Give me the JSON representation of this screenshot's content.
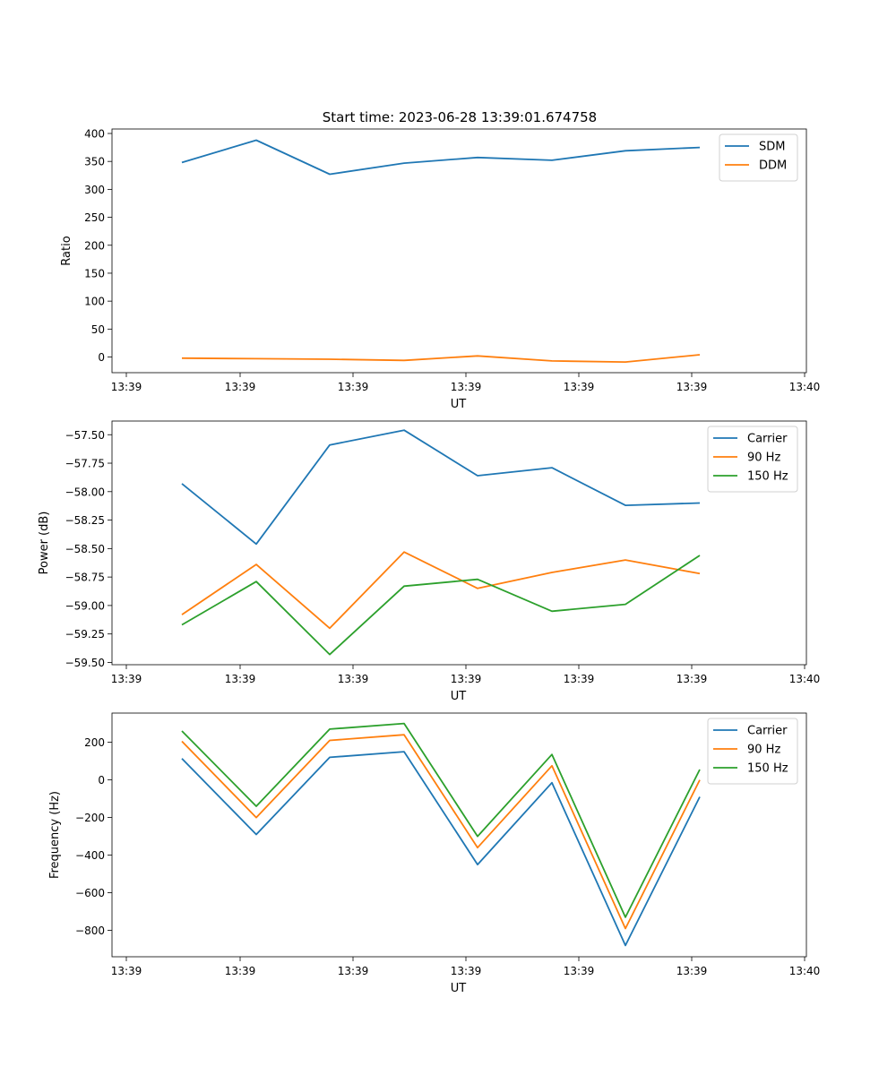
{
  "figure_title": "Start time: 2023-06-28 13:39:01.674758",
  "colors": {
    "blue": "#1f77b4",
    "orange": "#ff7f0e",
    "green": "#2ca02c"
  },
  "chart_data": [
    {
      "type": "line",
      "title": "Start time: 2023-06-28 13:39:01.674758",
      "xlabel": "UT",
      "ylabel": "Ratio",
      "x_tick_labels": [
        "13:39",
        "13:39",
        "13:39",
        "13:39",
        "13:39",
        "13:39",
        "13:40"
      ],
      "y_ticks": [
        0,
        50,
        100,
        150,
        200,
        250,
        300,
        350,
        400
      ],
      "ylim": [
        -28,
        408
      ],
      "legend": "top-right",
      "series": [
        {
          "name": "SDM",
          "color": "#1f77b4",
          "values": [
            348,
            388,
            327,
            347,
            357,
            352,
            369,
            375
          ]
        },
        {
          "name": "DDM",
          "color": "#ff7f0e",
          "values": [
            -2,
            -3,
            -4,
            -6,
            2,
            -7,
            -9,
            4
          ]
        }
      ]
    },
    {
      "type": "line",
      "xlabel": "UT",
      "ylabel": "Power (dB)",
      "x_tick_labels": [
        "13:39",
        "13:39",
        "13:39",
        "13:39",
        "13:39",
        "13:39",
        "13:40"
      ],
      "y_ticks": [
        -57.5,
        -57.75,
        -58.0,
        -58.25,
        -58.5,
        -58.75,
        -59.0,
        -59.25,
        -59.5
      ],
      "y_tick_labels": [
        "−57.50",
        "−57.75",
        "−58.00",
        "−58.25",
        "−58.50",
        "−58.75",
        "−59.00",
        "−59.25",
        "−59.50"
      ],
      "ylim": [
        -59.52,
        -57.38
      ],
      "legend": "top-right",
      "series": [
        {
          "name": "Carrier",
          "color": "#1f77b4",
          "values": [
            -57.93,
            -58.46,
            -57.59,
            -57.46,
            -57.86,
            -57.79,
            -58.12,
            -58.1
          ]
        },
        {
          "name": "90 Hz",
          "color": "#ff7f0e",
          "values": [
            -59.08,
            -58.64,
            -59.2,
            -58.53,
            -58.85,
            -58.71,
            -58.6,
            -58.72
          ]
        },
        {
          "name": "150 Hz",
          "color": "#2ca02c",
          "values": [
            -59.17,
            -58.79,
            -59.43,
            -58.83,
            -58.77,
            -59.05,
            -58.99,
            -58.56
          ]
        }
      ]
    },
    {
      "type": "line",
      "xlabel": "UT",
      "ylabel": "Frequency (Hz)",
      "x_tick_labels": [
        "13:39",
        "13:39",
        "13:39",
        "13:39",
        "13:39",
        "13:39",
        "13:40"
      ],
      "y_ticks": [
        -800,
        -600,
        -400,
        -200,
        0,
        200
      ],
      "y_tick_labels": [
        "−800",
        "−600",
        "−400",
        "−200",
        "0",
        "200"
      ],
      "ylim": [
        -940,
        355
      ],
      "legend": "top-right",
      "series": [
        {
          "name": "Carrier",
          "color": "#1f77b4",
          "values": [
            113,
            -290,
            120,
            150,
            -450,
            -15,
            -880,
            -90
          ]
        },
        {
          "name": "90 Hz",
          "color": "#ff7f0e",
          "values": [
            205,
            -200,
            210,
            240,
            -360,
            75,
            -790,
            0
          ]
        },
        {
          "name": "150 Hz",
          "color": "#2ca02c",
          "values": [
            260,
            -140,
            270,
            300,
            -300,
            135,
            -730,
            55
          ]
        }
      ]
    }
  ]
}
